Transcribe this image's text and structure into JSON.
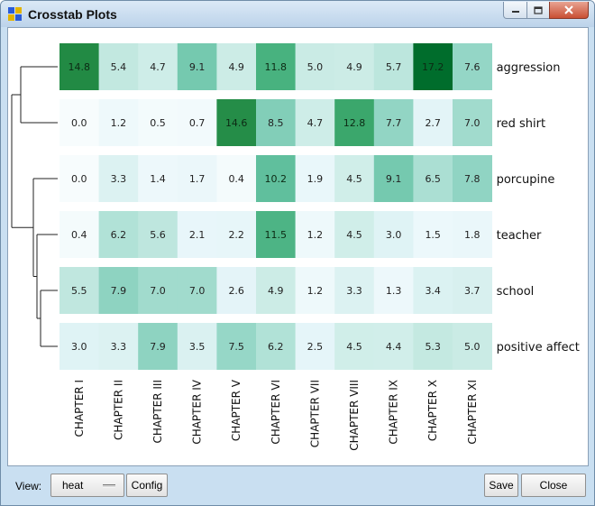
{
  "window": {
    "title": "Crosstab Plots",
    "icon": "app-grid-icon",
    "controls": [
      "minimize-icon",
      "maximize-icon",
      "close-icon"
    ]
  },
  "bottom_bar": {
    "view_label": "View:",
    "view_value": "heat",
    "config_label": "Config",
    "save_label": "Save",
    "close_label": "Close"
  },
  "colors": {
    "accent_min": "#f7fcfd",
    "accent_max": "#006d2c"
  },
  "chart_data": {
    "type": "heatmap",
    "columns": [
      "CHAPTER I",
      "CHAPTER II",
      "CHAPTER III",
      "CHAPTER IV",
      "CHAPTER V",
      "CHAPTER VI",
      "CHAPTER VII",
      "CHAPTER VIII",
      "CHAPTER IX",
      "CHAPTER X",
      "CHAPTER XI"
    ],
    "rows": [
      "aggression",
      "red shirt",
      "porcupine",
      "teacher",
      "school",
      "positive affect"
    ],
    "values": [
      [
        "14.8",
        "5.4",
        "4.7",
        "9.1",
        "4.9",
        "11.8",
        "5.0",
        "4.9",
        "5.7",
        "17.2",
        "7.6"
      ],
      [
        "0.0",
        "1.2",
        "0.5",
        "0.7",
        "14.6",
        "8.5",
        "4.7",
        "12.8",
        "7.7",
        "2.7",
        "7.0"
      ],
      [
        "0.0",
        "3.3",
        "1.4",
        "1.7",
        "0.4",
        "10.2",
        "1.9",
        "4.5",
        "9.1",
        "6.5",
        "7.8"
      ],
      [
        "0.4",
        "6.2",
        "5.6",
        "2.1",
        "2.2",
        "11.5",
        "1.2",
        "4.5",
        "3.0",
        "1.5",
        "1.8"
      ],
      [
        "5.5",
        "7.9",
        "7.0",
        "7.0",
        "2.6",
        "4.9",
        "1.2",
        "3.3",
        "1.3",
        "3.4",
        "3.7"
      ],
      [
        "3.0",
        "3.3",
        "7.9",
        "3.5",
        "7.5",
        "6.2",
        "2.5",
        "4.5",
        "4.4",
        "5.3",
        "5.0"
      ]
    ],
    "dendrogram": "hierarchical clustering of rows, drawn on the left"
  }
}
